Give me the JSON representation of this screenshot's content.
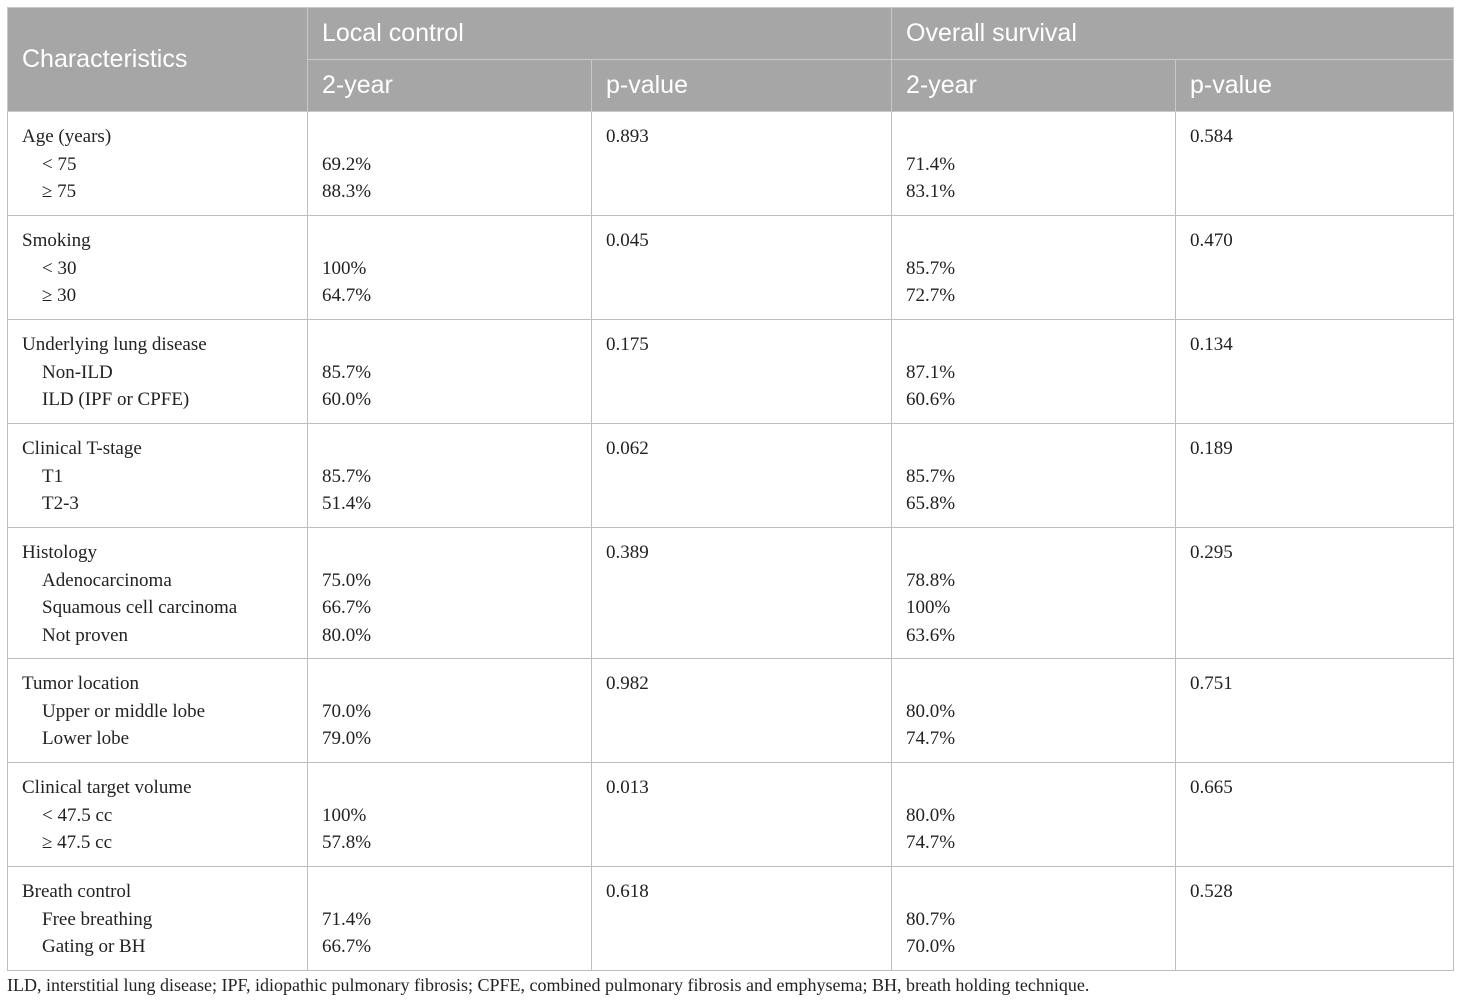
{
  "header": {
    "characteristics": "Characteristics",
    "local_control": "Local control",
    "overall_survival": "Overall survival",
    "two_year": "2-year",
    "p_value": "p-value"
  },
  "groups": [
    {
      "title": "Age (years)",
      "lc_p": "0.893",
      "os_p": "0.584",
      "rows": [
        {
          "label": "< 75",
          "lc": "69.2%",
          "os": "71.4%"
        },
        {
          "label": "≥ 75",
          "lc": "88.3%",
          "os": "83.1%"
        }
      ]
    },
    {
      "title": "Smoking",
      "lc_p": "0.045",
      "os_p": "0.470",
      "rows": [
        {
          "label": "< 30",
          "lc": "100%",
          "os": "85.7%"
        },
        {
          "label": "≥ 30",
          "lc": "64.7%",
          "os": "72.7%"
        }
      ]
    },
    {
      "title": "Underlying lung disease",
      "lc_p": "0.175",
      "os_p": "0.134",
      "rows": [
        {
          "label": "Non-ILD",
          "lc": "85.7%",
          "os": "87.1%"
        },
        {
          "label": "ILD (IPF or CPFE)",
          "lc": "60.0%",
          "os": "60.6%"
        }
      ]
    },
    {
      "title": "Clinical T-stage",
      "lc_p": "0.062",
      "os_p": "0.189",
      "rows": [
        {
          "label": "T1",
          "lc": "85.7%",
          "os": "85.7%"
        },
        {
          "label": "T2-3",
          "lc": "51.4%",
          "os": "65.8%"
        }
      ]
    },
    {
      "title": "Histology",
      "lc_p": "0.389",
      "os_p": "0.295",
      "rows": [
        {
          "label": "Adenocarcinoma",
          "lc": "75.0%",
          "os": "78.8%"
        },
        {
          "label": "Squamous cell carcinoma",
          "lc": "66.7%",
          "os": "100%"
        },
        {
          "label": "Not proven",
          "lc": "80.0%",
          "os": "63.6%"
        }
      ]
    },
    {
      "title": "Tumor location",
      "lc_p": "0.982",
      "os_p": "0.751",
      "rows": [
        {
          "label": "Upper or middle lobe",
          "lc": "70.0%",
          "os": "80.0%"
        },
        {
          "label": "Lower lobe",
          "lc": "79.0%",
          "os": "74.7%"
        }
      ]
    },
    {
      "title": "Clinical target volume",
      "lc_p": "0.013",
      "os_p": "0.665",
      "rows": [
        {
          "label": "< 47.5 cc",
          "lc": "100%",
          "os": "80.0%"
        },
        {
          "label": "≥ 47.5 cc",
          "lc": "57.8%",
          "os": "74.7%"
        }
      ]
    },
    {
      "title": "Breath control",
      "lc_p": "0.618",
      "os_p": "0.528",
      "rows": [
        {
          "label": "Free breathing",
          "lc": "71.4%",
          "os": "80.7%"
        },
        {
          "label": "Gating or BH",
          "lc": "66.7%",
          "os": "70.0%"
        }
      ]
    }
  ],
  "footnote": "ILD, interstitial lung disease; IPF, idiopathic pulmonary fibrosis; CPFE, combined pulmonary fibrosis and emphysema; BH, breath holding technique."
}
